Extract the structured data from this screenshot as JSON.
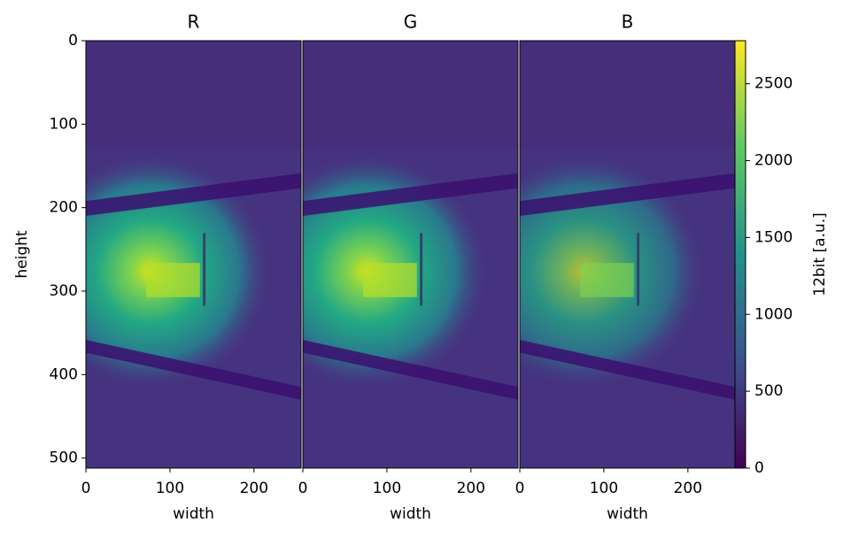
{
  "chart_data": [
    {
      "type": "image",
      "title": "R",
      "xlabel": "width",
      "ylabel": "height",
      "xlim": [
        0,
        256
      ],
      "ylim": [
        512,
        0
      ],
      "xticks": [
        0,
        100,
        200
      ],
      "yticks": [
        0,
        100,
        200,
        300,
        400,
        500
      ]
    },
    {
      "type": "image",
      "title": "G",
      "xlabel": "width",
      "xlim": [
        0,
        256
      ],
      "ylim": [
        512,
        0
      ],
      "xticks": [
        0,
        100,
        200
      ]
    },
    {
      "type": "image",
      "title": "B",
      "xlabel": "width",
      "xlim": [
        0,
        256
      ],
      "ylim": [
        512,
        0
      ],
      "xticks": [
        0,
        100,
        200
      ]
    },
    {
      "type": "colorbar",
      "label": "12bit [a.u.]",
      "ylim": [
        0,
        2780
      ],
      "yticks": [
        0,
        500,
        1000,
        1500,
        2000,
        2500
      ]
    }
  ]
}
